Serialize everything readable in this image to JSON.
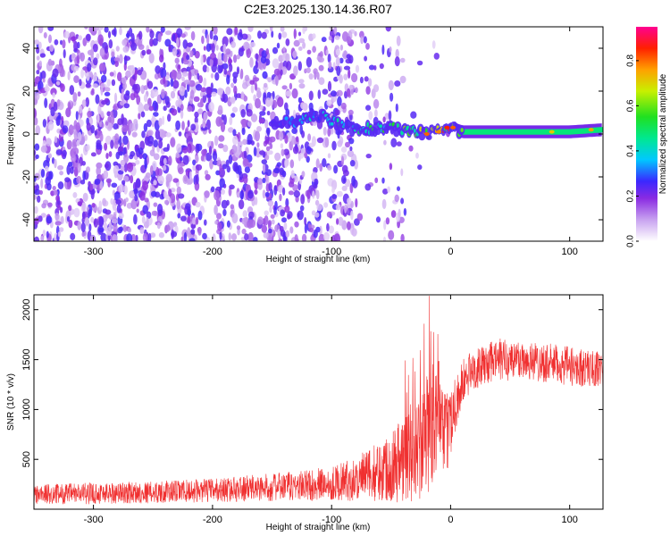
{
  "figure_title": "C2E3.2025.130.14.36.R07",
  "colors": {
    "snr_line": "#f03030",
    "axes": "#000000",
    "colormap": [
      "#ffffff",
      "#c8a2f0",
      "#8a2be2",
      "#5a1bff",
      "#2050ff",
      "#00c8ff",
      "#00e890",
      "#20e020",
      "#c8f000",
      "#ffa000",
      "#ff2000",
      "#ff0090"
    ]
  },
  "chart_data": [
    {
      "type": "heatmap",
      "title": "",
      "xlabel": "Height of straight line (km)",
      "ylabel": "Frequency (Hz)",
      "xlim": [
        -350,
        128
      ],
      "ylim": [
        -50,
        50
      ],
      "xticks": [
        -300,
        -200,
        -100,
        0,
        100
      ],
      "yticks": [
        -40,
        -20,
        0,
        20,
        40
      ],
      "colorbar": {
        "label": "Normalized spectral amplitude",
        "range": [
          0,
          0.95
        ],
        "ticks": [
          0.0,
          0.2,
          0.4,
          0.6,
          0.8
        ]
      },
      "signal_track": [
        {
          "x": -150,
          "f": 5,
          "amp": 0.3
        },
        {
          "x": -130,
          "f": 6,
          "amp": 0.35
        },
        {
          "x": -110,
          "f": 9,
          "amp": 0.4
        },
        {
          "x": -95,
          "f": 5,
          "amp": 0.45
        },
        {
          "x": -80,
          "f": 2,
          "amp": 0.45
        },
        {
          "x": -60,
          "f": 3,
          "amp": 0.5
        },
        {
          "x": -40,
          "f": 2,
          "amp": 0.55
        },
        {
          "x": -20,
          "f": 0,
          "amp": 0.7
        },
        {
          "x": -5,
          "f": 2,
          "amp": 0.75
        },
        {
          "x": 0,
          "f": 3,
          "amp": 0.85
        },
        {
          "x": 10,
          "f": 1,
          "amp": 0.6
        },
        {
          "x": 40,
          "f": 1,
          "amp": 0.55
        },
        {
          "x": 80,
          "f": 1,
          "amp": 0.55
        },
        {
          "x": 100,
          "f": 1,
          "amp": 0.55
        },
        {
          "x": 128,
          "f": 2,
          "amp": 0.6
        }
      ]
    },
    {
      "type": "line",
      "title": "",
      "xlabel": "Height of straight line (km)",
      "ylabel": "SNR (10 * v/v)",
      "xlim": [
        -350,
        128
      ],
      "ylim": [
        0,
        2150
      ],
      "xticks": [
        -300,
        -200,
        -100,
        0,
        100
      ],
      "yticks": [
        500,
        1000,
        1500,
        2000
      ],
      "envelope": {
        "x": [
          -350,
          -300,
          -250,
          -200,
          -150,
          -120,
          -100,
          -80,
          -60,
          -50,
          -40,
          -30,
          -20,
          -15,
          -10,
          -5,
          0,
          5,
          10,
          15,
          20,
          30,
          40,
          60,
          80,
          100,
          128
        ],
        "mid": [
          150,
          160,
          170,
          190,
          220,
          240,
          260,
          300,
          380,
          450,
          500,
          550,
          700,
          900,
          1000,
          700,
          900,
          1100,
          1250,
          1350,
          1400,
          1450,
          1500,
          1500,
          1470,
          1430,
          1400
        ],
        "amp": [
          100,
          110,
          110,
          120,
          140,
          160,
          170,
          220,
          300,
          380,
          450,
          500,
          600,
          650,
          500,
          450,
          350,
          300,
          250,
          220,
          200,
          200,
          220,
          200,
          200,
          200,
          180
        ]
      }
    }
  ]
}
